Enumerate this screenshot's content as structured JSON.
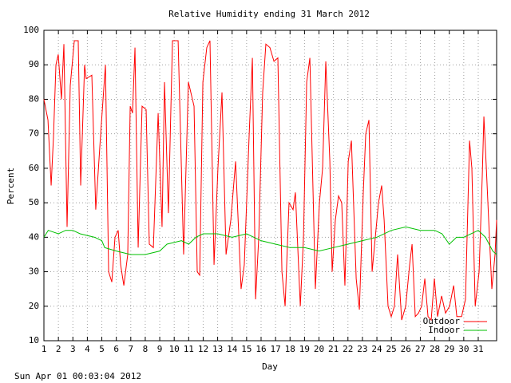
{
  "chart_data": {
    "type": "line",
    "title": "Relative Humidity ending 31 March 2012",
    "x_label": "Day",
    "y_label": "Percent",
    "footer": "Sun Apr 01 00:03:04 2012",
    "xlim": [
      1,
      32.27
    ],
    "ylim": [
      10,
      100
    ],
    "xticks": [
      1,
      2,
      3,
      4,
      5,
      6,
      7,
      8,
      9,
      10,
      11,
      12,
      13,
      14,
      15,
      16,
      17,
      18,
      19,
      20,
      21,
      22,
      23,
      24,
      25,
      26,
      27,
      28,
      29,
      30,
      31
    ],
    "yticks": [
      10,
      20,
      30,
      40,
      50,
      60,
      70,
      80,
      90,
      100
    ],
    "grid": true,
    "legend": "lower right",
    "series": [
      {
        "name": "Outdoor",
        "color": "#ff0000",
        "x": [
          1.0,
          1.28,
          1.5,
          1.66,
          1.83,
          1.99,
          2.21,
          2.38,
          2.6,
          2.82,
          3.1,
          3.37,
          3.54,
          3.81,
          3.92,
          4.31,
          4.58,
          4.92,
          5.25,
          5.47,
          5.69,
          5.91,
          6.13,
          6.3,
          6.52,
          6.79,
          6.96,
          7.12,
          7.29,
          7.51,
          7.78,
          8.06,
          8.28,
          8.56,
          8.89,
          9.16,
          9.33,
          9.6,
          9.88,
          10.27,
          10.65,
          10.98,
          11.37,
          11.59,
          11.76,
          11.98,
          12.25,
          12.47,
          12.75,
          13.02,
          13.3,
          13.58,
          13.91,
          14.24,
          14.62,
          14.84,
          15.18,
          15.4,
          15.62,
          15.84,
          16.11,
          16.33,
          16.61,
          16.89,
          17.16,
          17.44,
          17.66,
          17.93,
          18.21,
          18.37,
          18.71,
          18.93,
          19.15,
          19.37,
          19.75,
          20.03,
          20.25,
          20.47,
          20.75,
          20.91,
          21.13,
          21.35,
          21.57,
          21.79,
          22.02,
          22.24,
          22.57,
          22.79,
          23.06,
          23.23,
          23.45,
          23.67,
          23.89,
          24.11,
          24.33,
          24.5,
          24.77,
          24.99,
          25.21,
          25.43,
          25.71,
          25.99,
          26.26,
          26.43,
          26.65,
          26.87,
          27.09,
          27.31,
          27.53,
          27.75,
          27.97,
          28.19,
          28.47,
          28.74,
          29.02,
          29.3,
          29.52,
          29.85,
          30.12,
          30.4,
          30.56,
          30.79,
          31.06,
          31.28,
          31.39,
          31.56,
          31.72,
          31.94,
          32.16,
          32.27
        ],
        "values": [
          80,
          74,
          55,
          69,
          90,
          93,
          80,
          96,
          43,
          84,
          97,
          97,
          55,
          90,
          86,
          87,
          48,
          70,
          90,
          30,
          27,
          40,
          42,
          32,
          26,
          35,
          78,
          76,
          95,
          37,
          78,
          77,
          38,
          37,
          76,
          43,
          85,
          47,
          97,
          97,
          35,
          85,
          78,
          30,
          29,
          85,
          95,
          97,
          32,
          60,
          82,
          35,
          45,
          62,
          25,
          32,
          70,
          92,
          22,
          40,
          82,
          96,
          95,
          91,
          92,
          30,
          20,
          50,
          48,
          53,
          20,
          40,
          85,
          92,
          25,
          50,
          60,
          91,
          62,
          30,
          45,
          52,
          50,
          26,
          62,
          68,
          28,
          19,
          53,
          70,
          74,
          30,
          40,
          50,
          55,
          45,
          20,
          17,
          20,
          35,
          16,
          20,
          32,
          38,
          17,
          18,
          20,
          28,
          17,
          16,
          28,
          17,
          23,
          18,
          20,
          26,
          17,
          17,
          22,
          68,
          60,
          20,
          30,
          58,
          75,
          60,
          45,
          25,
          35,
          45
        ]
      },
      {
        "name": "Indoor",
        "color": "#00c000",
        "x": [
          1.0,
          1.3,
          2.0,
          2.5,
          3.0,
          3.5,
          4.5,
          5.0,
          5.2,
          6.0,
          7.0,
          8.0,
          9.0,
          9.5,
          10.5,
          11.0,
          11.5,
          12.0,
          13.0,
          14.0,
          15.0,
          16.0,
          17.0,
          18.0,
          19.0,
          20.0,
          21.0,
          22.0,
          23.0,
          24.0,
          25.0,
          26.0,
          27.0,
          28.0,
          28.5,
          29.0,
          29.5,
          30.0,
          31.0,
          31.5,
          32.0,
          32.27
        ],
        "values": [
          40,
          42,
          41,
          42,
          42,
          41,
          40,
          39,
          37,
          36,
          35,
          35,
          36,
          38,
          39,
          38,
          40,
          41,
          41,
          40,
          41,
          39,
          38,
          37,
          37,
          36,
          37,
          38,
          39,
          40,
          42,
          43,
          42,
          42,
          41,
          38,
          40,
          40,
          42,
          40,
          36,
          35
        ]
      }
    ]
  }
}
